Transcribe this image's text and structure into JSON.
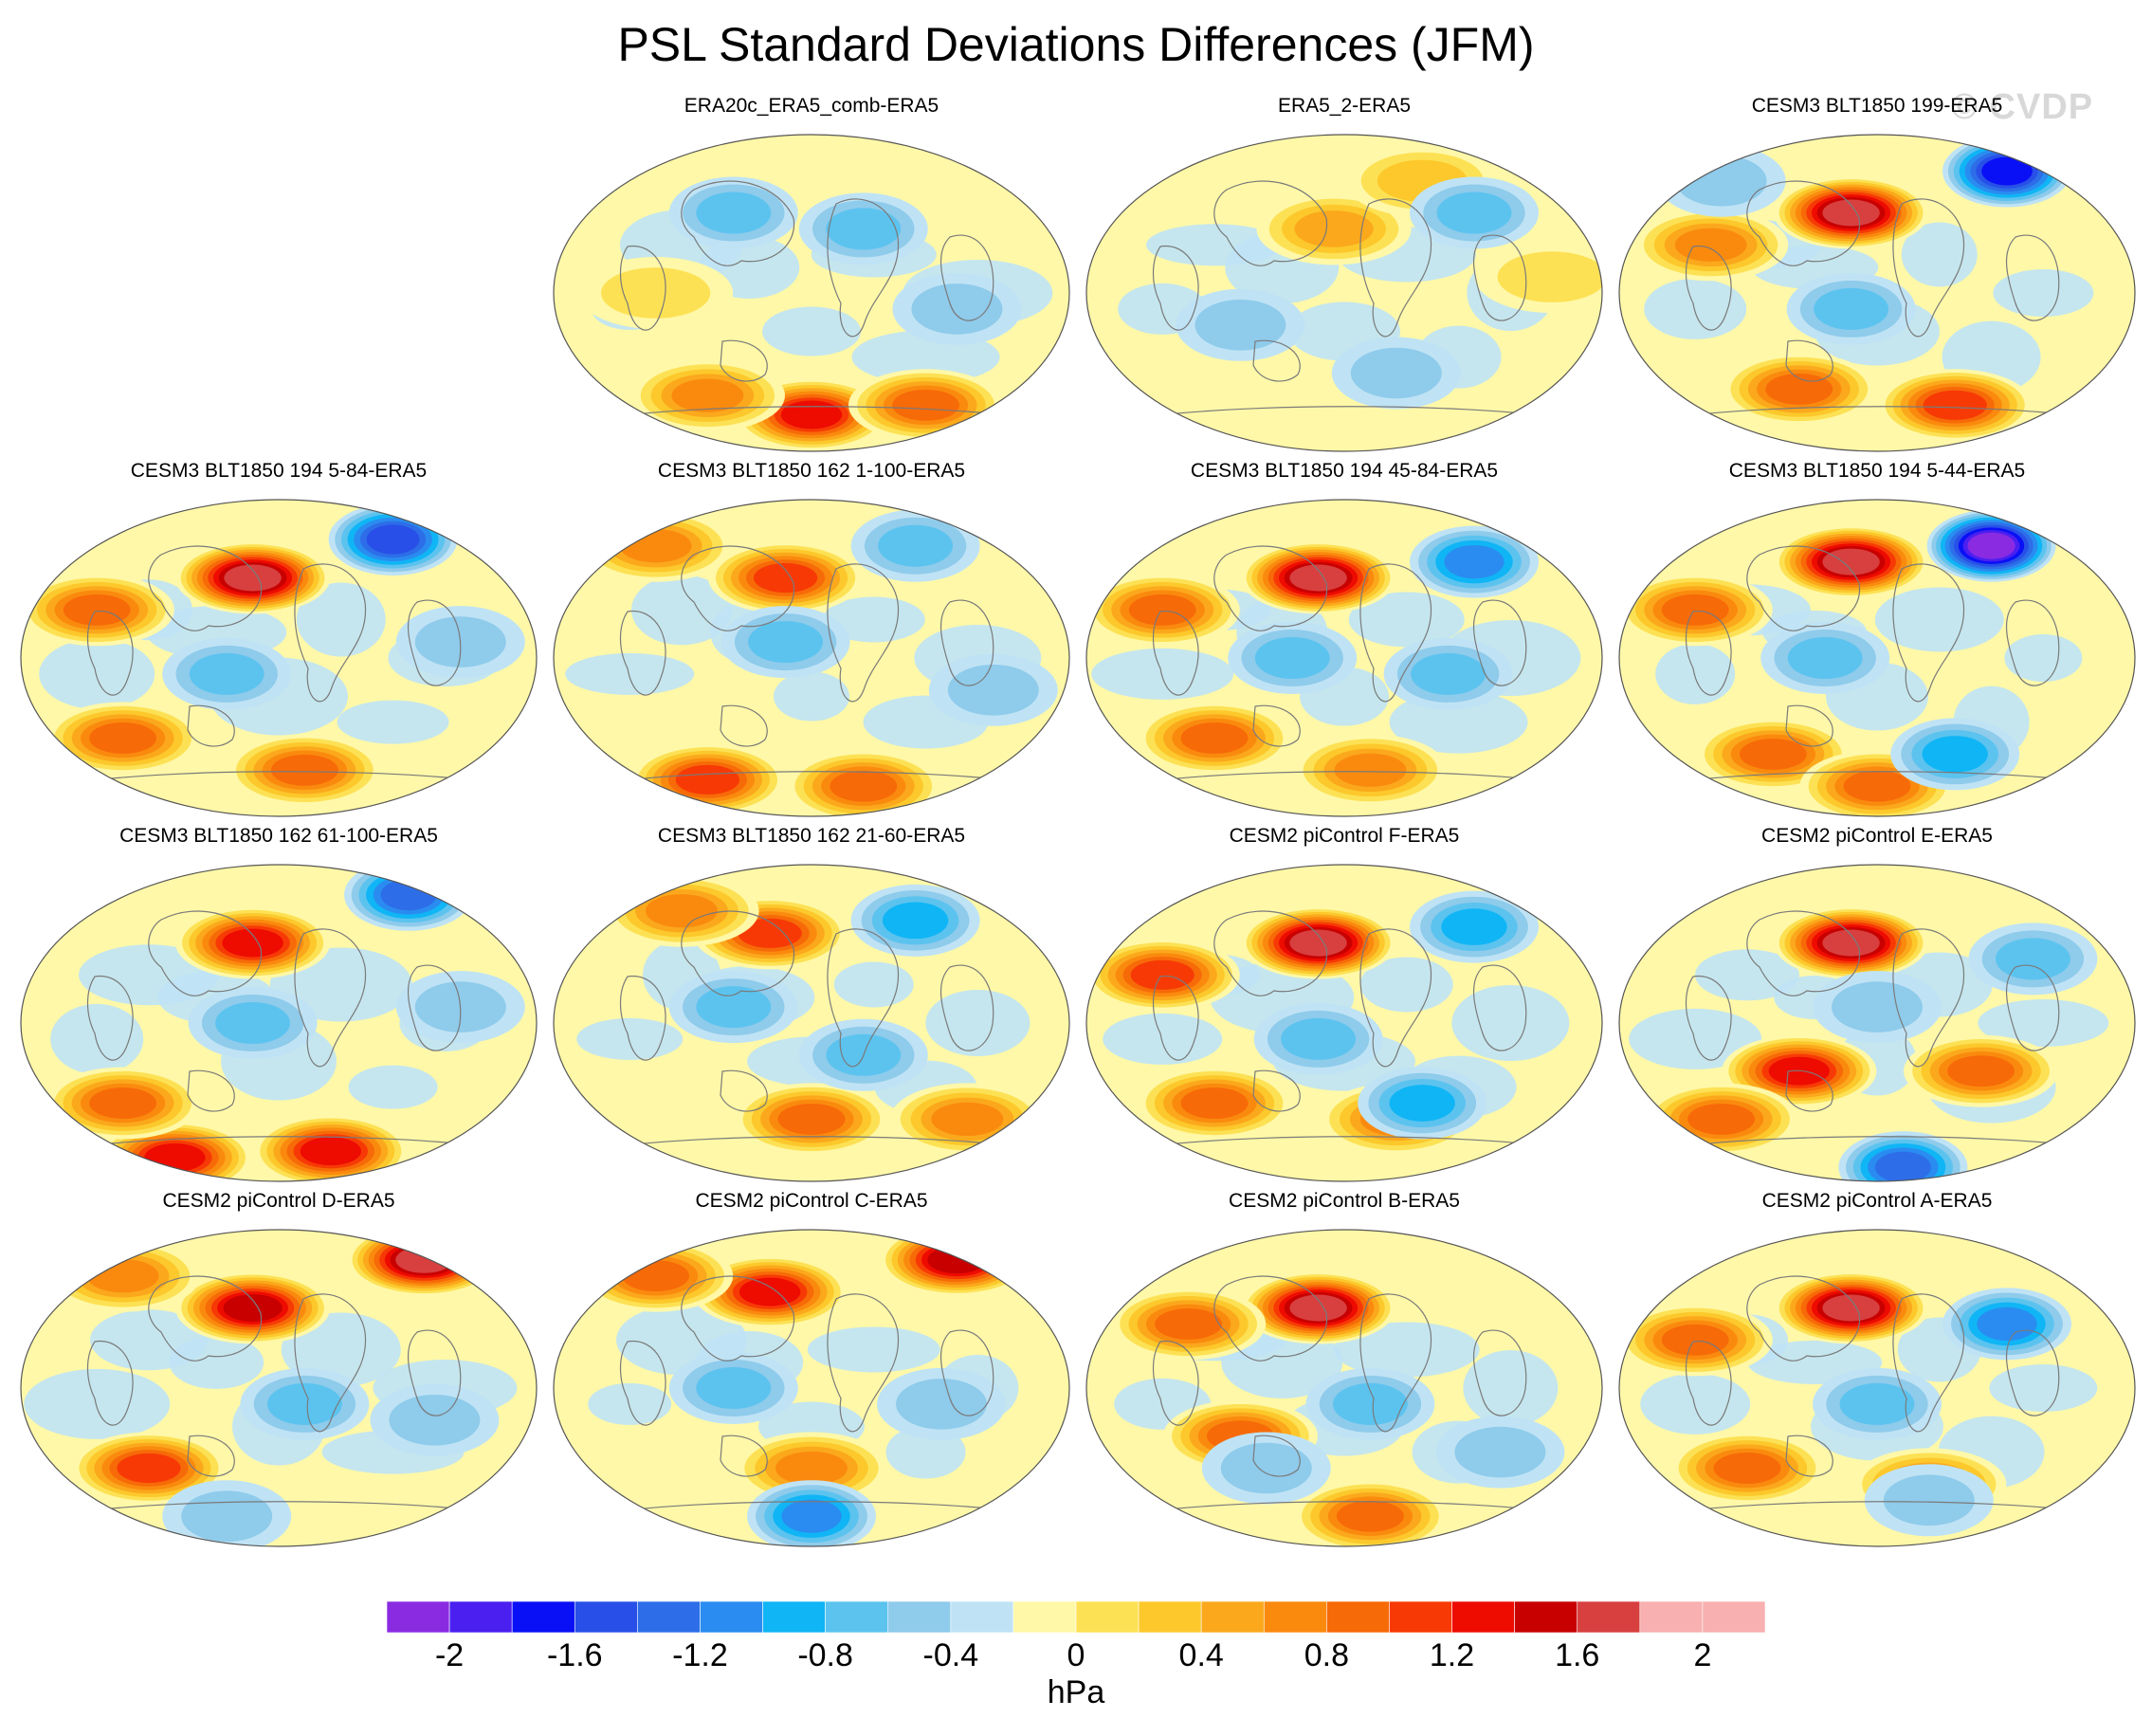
{
  "title": "PSL Standard Deviations Differences (JFM)",
  "watermark": "© CVDP",
  "units": "hPa",
  "colors": {
    "land_outline": "#7a7a7a",
    "map_outline": "#555555",
    "levels": [
      "#8a2be2",
      "#4a1ff0",
      "#0a10f5",
      "#2850e8",
      "#2d6ee8",
      "#2a8cf0",
      "#10b5f5",
      "#5cc3ef",
      "#8fcbeb",
      "#bfe3f5",
      "#fff8a8",
      "#fde154",
      "#fcc82b",
      "#fba81c",
      "#fa8a0e",
      "#f76a08",
      "#f73a05",
      "#ee0b00",
      "#c80000",
      "#d84040",
      "#f8b0b0"
    ]
  },
  "colorbar": {
    "labels": [
      "-2",
      "-1.6",
      "-1.2",
      "-0.8",
      "-0.4",
      "0",
      "0.4",
      "0.8",
      "1.2",
      "1.6",
      "2"
    ]
  },
  "panels": [
    {
      "title": "ERA20c_ERA5_comb-ERA5",
      "hot": [
        [
          0.5,
          0.88,
          1.6
        ],
        [
          0.3,
          0.82,
          1.0
        ],
        [
          0.72,
          0.85,
          1.2
        ],
        [
          0.2,
          0.5,
          0.4
        ]
      ],
      "cold": [
        [
          0.35,
          0.25,
          -0.6
        ],
        [
          0.6,
          0.3,
          -0.5
        ],
        [
          0.78,
          0.55,
          -0.4
        ]
      ]
    },
    {
      "title": "ERA5_2-ERA5",
      "hot": [
        [
          0.48,
          0.3,
          0.8
        ],
        [
          0.9,
          0.45,
          0.4
        ],
        [
          0.65,
          0.15,
          0.5
        ]
      ],
      "cold": [
        [
          0.6,
          0.75,
          -0.4
        ],
        [
          0.3,
          0.6,
          -0.4
        ],
        [
          0.75,
          0.25,
          -0.5
        ]
      ]
    },
    {
      "title": "CESM3 BLT1850 199-ERA5",
      "hot": [
        [
          0.45,
          0.25,
          2.0
        ],
        [
          0.35,
          0.8,
          1.2
        ],
        [
          0.65,
          0.85,
          1.3
        ],
        [
          0.18,
          0.35,
          1.0
        ]
      ],
      "cold": [
        [
          0.75,
          0.12,
          -1.6
        ],
        [
          0.45,
          0.55,
          -0.6
        ],
        [
          0.2,
          0.15,
          -0.4
        ]
      ]
    },
    {
      "title": "CESM3 BLT1850 194 5-84-ERA5",
      "hot": [
        [
          0.45,
          0.25,
          2.0
        ],
        [
          0.2,
          0.75,
          1.2
        ],
        [
          0.55,
          0.85,
          1.2
        ],
        [
          0.15,
          0.35,
          1.2
        ]
      ],
      "cold": [
        [
          0.72,
          0.13,
          -1.4
        ],
        [
          0.4,
          0.55,
          -0.6
        ],
        [
          0.85,
          0.45,
          -0.4
        ]
      ]
    },
    {
      "title": "CESM3 BLT1850 162 1-100-ERA5",
      "hot": [
        [
          0.45,
          0.25,
          1.4
        ],
        [
          0.3,
          0.88,
          1.4
        ],
        [
          0.6,
          0.9,
          1.2
        ],
        [
          0.2,
          0.15,
          1.0
        ]
      ],
      "cold": [
        [
          0.7,
          0.15,
          -0.6
        ],
        [
          0.45,
          0.45,
          -0.5
        ],
        [
          0.85,
          0.6,
          -0.4
        ]
      ]
    },
    {
      "title": "CESM3 BLT1850 194 45-84-ERA5",
      "hot": [
        [
          0.45,
          0.25,
          2.0
        ],
        [
          0.25,
          0.75,
          1.2
        ],
        [
          0.55,
          0.85,
          1.0
        ],
        [
          0.15,
          0.35,
          1.2
        ]
      ],
      "cold": [
        [
          0.75,
          0.2,
          -1.0
        ],
        [
          0.4,
          0.5,
          -0.6
        ],
        [
          0.7,
          0.55,
          -0.5
        ]
      ]
    },
    {
      "title": "CESM3 BLT1850 194 5-44-ERA5",
      "hot": [
        [
          0.45,
          0.2,
          2.0
        ],
        [
          0.3,
          0.8,
          1.2
        ],
        [
          0.5,
          0.9,
          1.2
        ],
        [
          0.15,
          0.35,
          1.2
        ]
      ],
      "cold": [
        [
          0.72,
          0.15,
          -2.0
        ],
        [
          0.65,
          0.8,
          -0.8
        ],
        [
          0.4,
          0.5,
          -0.6
        ]
      ]
    },
    {
      "title": "CESM3 BLT1850 162 61-100-ERA5",
      "hot": [
        [
          0.45,
          0.25,
          1.6
        ],
        [
          0.3,
          0.92,
          1.6
        ],
        [
          0.6,
          0.9,
          1.6
        ],
        [
          0.2,
          0.75,
          1.2
        ]
      ],
      "cold": [
        [
          0.75,
          0.1,
          -1.2
        ],
        [
          0.45,
          0.5,
          -0.5
        ],
        [
          0.85,
          0.45,
          -0.4
        ]
      ]
    },
    {
      "title": "CESM3 BLT1850 162 21-60-ERA5",
      "hot": [
        [
          0.42,
          0.22,
          1.4
        ],
        [
          0.25,
          0.15,
          1.0
        ],
        [
          0.5,
          0.8,
          1.2
        ],
        [
          0.8,
          0.8,
          1.0
        ]
      ],
      "cold": [
        [
          0.7,
          0.18,
          -0.8
        ],
        [
          0.35,
          0.45,
          -0.6
        ],
        [
          0.6,
          0.6,
          -0.5
        ]
      ]
    },
    {
      "title": "CESM2 piControl F-ERA5",
      "hot": [
        [
          0.45,
          0.25,
          2.0
        ],
        [
          0.25,
          0.75,
          1.2
        ],
        [
          0.6,
          0.8,
          1.0
        ],
        [
          0.15,
          0.35,
          1.4
        ]
      ],
      "cold": [
        [
          0.75,
          0.2,
          -0.8
        ],
        [
          0.45,
          0.55,
          -0.5
        ],
        [
          0.65,
          0.75,
          -0.8
        ]
      ]
    },
    {
      "title": "CESM2 piControl E-ERA5",
      "hot": [
        [
          0.45,
          0.25,
          2.0
        ],
        [
          0.35,
          0.65,
          1.6
        ],
        [
          0.2,
          0.8,
          1.2
        ],
        [
          0.7,
          0.65,
          1.2
        ]
      ],
      "cold": [
        [
          0.55,
          0.95,
          -1.2
        ],
        [
          0.8,
          0.3,
          -0.6
        ],
        [
          0.5,
          0.45,
          -0.4
        ]
      ]
    },
    {
      "title": "CESM2 piControl D-ERA5",
      "hot": [
        [
          0.45,
          0.25,
          1.8
        ],
        [
          0.78,
          0.1,
          2.0
        ],
        [
          0.25,
          0.75,
          1.4
        ],
        [
          0.2,
          0.15,
          1.0
        ]
      ],
      "cold": [
        [
          0.55,
          0.55,
          -0.5
        ],
        [
          0.8,
          0.6,
          -0.4
        ],
        [
          0.4,
          0.9,
          -0.4
        ]
      ]
    },
    {
      "title": "CESM2 piControl C-ERA5",
      "hot": [
        [
          0.42,
          0.2,
          1.6
        ],
        [
          0.78,
          0.1,
          1.8
        ],
        [
          0.2,
          0.15,
          1.2
        ],
        [
          0.5,
          0.75,
          1.0
        ]
      ],
      "cold": [
        [
          0.5,
          0.9,
          -1.0
        ],
        [
          0.35,
          0.5,
          -0.5
        ],
        [
          0.75,
          0.55,
          -0.4
        ]
      ]
    },
    {
      "title": "CESM2 piControl B-ERA5",
      "hot": [
        [
          0.45,
          0.25,
          2.0
        ],
        [
          0.3,
          0.65,
          1.2
        ],
        [
          0.55,
          0.9,
          1.2
        ],
        [
          0.2,
          0.3,
          1.2
        ]
      ],
      "cold": [
        [
          0.55,
          0.55,
          -0.5
        ],
        [
          0.8,
          0.7,
          -0.4
        ],
        [
          0.35,
          0.75,
          -0.4
        ]
      ]
    },
    {
      "title": "CESM2 piControl A-ERA5",
      "hot": [
        [
          0.45,
          0.25,
          2.0
        ],
        [
          0.25,
          0.75,
          1.2
        ],
        [
          0.6,
          0.8,
          1.0
        ],
        [
          0.15,
          0.35,
          1.2
        ]
      ],
      "cold": [
        [
          0.75,
          0.3,
          -1.0
        ],
        [
          0.5,
          0.55,
          -0.5
        ],
        [
          0.6,
          0.85,
          -0.4
        ]
      ]
    }
  ]
}
